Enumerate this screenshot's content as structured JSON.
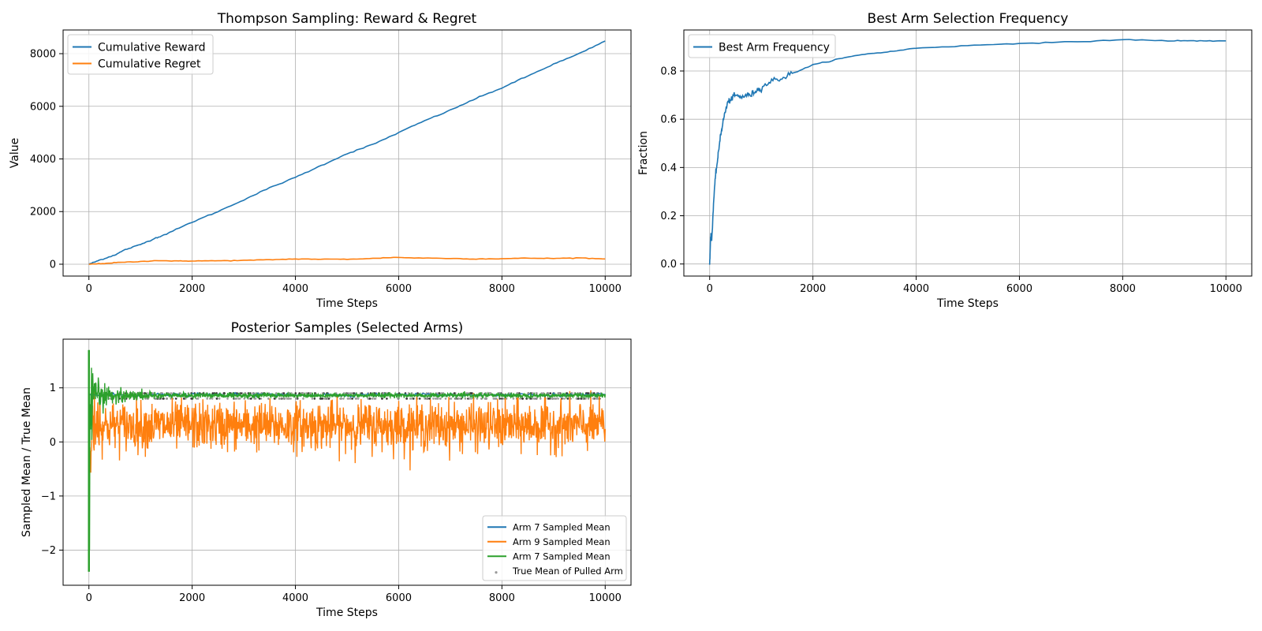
{
  "chart_data": [
    {
      "type": "line",
      "title": "Thompson Sampling: Reward & Regret",
      "xlabel": "Time Steps",
      "ylabel": "Value",
      "xlim": [
        -500,
        10500
      ],
      "ylim": [
        -450,
        8900
      ],
      "xticks": [
        0,
        2000,
        4000,
        6000,
        8000,
        10000
      ],
      "yticks": [
        0,
        2000,
        4000,
        6000,
        8000
      ],
      "grid": true,
      "legend_position": "upper-left",
      "series": [
        {
          "name": "Cumulative Reward",
          "color": "#1f77b4",
          "x": [
            0,
            200,
            500,
            700,
            1000,
            1300,
            1500,
            2000,
            2500,
            3000,
            3500,
            4000,
            4500,
            5000,
            5500,
            6000,
            6500,
            7000,
            7500,
            8000,
            8500,
            9000,
            9500,
            10000
          ],
          "y": [
            0,
            150,
            350,
            550,
            750,
            1000,
            1150,
            1600,
            2000,
            2450,
            2900,
            3300,
            3750,
            4200,
            4550,
            5000,
            5450,
            5850,
            6300,
            6700,
            7150,
            7600,
            8000,
            8480
          ]
        },
        {
          "name": "Cumulative Regret",
          "color": "#ff7f0e",
          "x": [
            0,
            300,
            600,
            1000,
            1300,
            1700,
            2000,
            2500,
            3000,
            3500,
            4000,
            4500,
            5000,
            5500,
            5900,
            6300,
            7000,
            7500,
            8000,
            8500,
            9000,
            9500,
            10000
          ],
          "y": [
            0,
            30,
            70,
            100,
            140,
            120,
            125,
            130,
            145,
            170,
            200,
            190,
            190,
            220,
            260,
            240,
            220,
            200,
            210,
            230,
            220,
            240,
            200
          ]
        }
      ]
    },
    {
      "type": "line",
      "title": "Best Arm Selection Frequency",
      "xlabel": "Time Steps",
      "ylabel": "Fraction",
      "xlim": [
        -500,
        10500
      ],
      "ylim": [
        -0.05,
        0.97
      ],
      "xticks": [
        0,
        2000,
        4000,
        6000,
        8000,
        10000
      ],
      "yticks": [
        0.0,
        0.2,
        0.4,
        0.6,
        0.8
      ],
      "grid": true,
      "legend_position": "upper-left",
      "series": [
        {
          "name": "Best Arm Frequency",
          "color": "#1f77b4",
          "x": [
            0,
            20,
            40,
            80,
            120,
            160,
            200,
            250,
            300,
            350,
            400,
            500,
            600,
            700,
            800,
            900,
            1000,
            1200,
            1400,
            1600,
            2000,
            2500,
            3000,
            3500,
            4000,
            5000,
            6000,
            7000,
            8000,
            9000,
            9500,
            10000
          ],
          "y": [
            0.0,
            0.12,
            0.1,
            0.27,
            0.38,
            0.44,
            0.52,
            0.58,
            0.63,
            0.67,
            0.68,
            0.7,
            0.69,
            0.7,
            0.7,
            0.72,
            0.73,
            0.76,
            0.77,
            0.79,
            0.825,
            0.85,
            0.87,
            0.88,
            0.895,
            0.905,
            0.915,
            0.92,
            0.93,
            0.925,
            0.925,
            0.925
          ]
        }
      ]
    },
    {
      "type": "line",
      "title": "Posterior Samples (Selected Arms)",
      "xlabel": "Time Steps",
      "ylabel": "Sampled Mean / True Mean",
      "xlim": [
        -500,
        10500
      ],
      "ylim": [
        -2.65,
        1.9
      ],
      "xticks": [
        0,
        2000,
        4000,
        6000,
        8000,
        10000
      ],
      "yticks": [
        -2,
        -1,
        0,
        1
      ],
      "grid": true,
      "legend_position": "lower-right",
      "series": [
        {
          "name": "Arm 7 Sampled Mean",
          "color": "#1f77b4",
          "x": [
            0,
            100,
            500,
            2000,
            10000
          ],
          "y": [
            0.2,
            1.0,
            0.92,
            0.88,
            0.86
          ]
        },
        {
          "name": "Arm 9 Sampled Mean",
          "color": "#ff7f0e",
          "x_range": [
            0,
            10000
          ],
          "center": 0.3,
          "band": [
            -0.55,
            1.1
          ]
        },
        {
          "name": "Arm 7 Sampled Mean",
          "color": "#2ca02c",
          "x_range": [
            0,
            10000
          ],
          "center": 0.86,
          "early_spike": [
            -2.4,
            1.7
          ]
        },
        {
          "name": "True Mean of Pulled Arm",
          "type": "scatter",
          "color": "#808080",
          "x_range": [
            0,
            10000
          ],
          "y_levels": [
            0.8,
            0.9
          ]
        }
      ]
    }
  ]
}
